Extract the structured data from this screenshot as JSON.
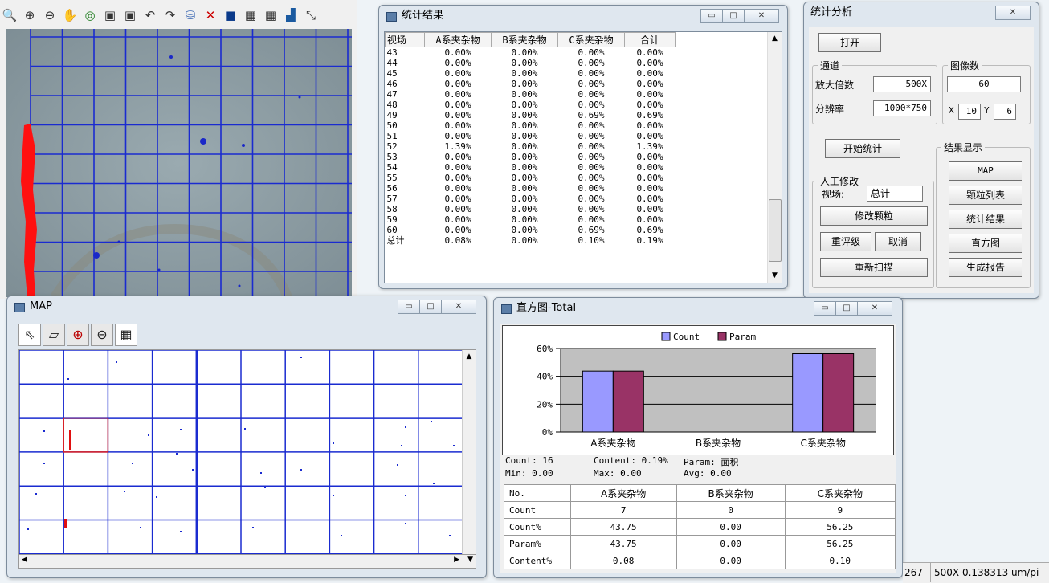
{
  "toolbar": {
    "icons": [
      "zoom-glass-icon",
      "zoom-in-icon",
      "zoom-out-icon",
      "hand-pan-icon",
      "zoom-fit-icon",
      "layer-back-icon",
      "layer-front-icon",
      "undo-icon",
      "redo-icon",
      "stamp-icon",
      "delete-x-icon",
      "fill-rect-icon",
      "color-grid-a-icon",
      "color-grid-b-icon",
      "chart-icon",
      "wand-icon"
    ]
  },
  "stats_window": {
    "title": "统计结果",
    "headers": [
      "视场",
      "A系夹杂物",
      "B系夹杂物",
      "C系夹杂物",
      "合计"
    ],
    "rows": [
      [
        "43",
        "0.00%",
        "0.00%",
        "0.00%",
        "0.00%"
      ],
      [
        "44",
        "0.00%",
        "0.00%",
        "0.00%",
        "0.00%"
      ],
      [
        "45",
        "0.00%",
        "0.00%",
        "0.00%",
        "0.00%"
      ],
      [
        "46",
        "0.00%",
        "0.00%",
        "0.00%",
        "0.00%"
      ],
      [
        "47",
        "0.00%",
        "0.00%",
        "0.00%",
        "0.00%"
      ],
      [
        "48",
        "0.00%",
        "0.00%",
        "0.00%",
        "0.00%"
      ],
      [
        "49",
        "0.00%",
        "0.00%",
        "0.69%",
        "0.69%"
      ],
      [
        "50",
        "0.00%",
        "0.00%",
        "0.00%",
        "0.00%"
      ],
      [
        "51",
        "0.00%",
        "0.00%",
        "0.00%",
        "0.00%"
      ],
      [
        "52",
        "1.39%",
        "0.00%",
        "0.00%",
        "1.39%"
      ],
      [
        "53",
        "0.00%",
        "0.00%",
        "0.00%",
        "0.00%"
      ],
      [
        "54",
        "0.00%",
        "0.00%",
        "0.00%",
        "0.00%"
      ],
      [
        "55",
        "0.00%",
        "0.00%",
        "0.00%",
        "0.00%"
      ],
      [
        "56",
        "0.00%",
        "0.00%",
        "0.00%",
        "0.00%"
      ],
      [
        "57",
        "0.00%",
        "0.00%",
        "0.00%",
        "0.00%"
      ],
      [
        "58",
        "0.00%",
        "0.00%",
        "0.00%",
        "0.00%"
      ],
      [
        "59",
        "0.00%",
        "0.00%",
        "0.00%",
        "0.00%"
      ],
      [
        "60",
        "0.00%",
        "0.00%",
        "0.69%",
        "0.69%"
      ],
      [
        "总计",
        "0.08%",
        "0.00%",
        "0.10%",
        "0.19%"
      ]
    ]
  },
  "analysis": {
    "title": "统计分析",
    "open_btn": "打开",
    "channel_group": "通道",
    "mag_label": "放大倍数",
    "mag_value": "500X",
    "res_label": "分辨率",
    "res_value": "1000*750",
    "imgcount_group": "图像数",
    "imgcount_value": "60",
    "x_label": "X",
    "x_value": "10",
    "y_label": "Y",
    "y_value": "6",
    "start_btn": "开始统计",
    "manual_group": "人工修改",
    "field_label": "视场:",
    "field_value": "总计",
    "modify_btn": "修改颗粒",
    "regrade_btn": "重评级",
    "cancel_btn": "取消",
    "rescan_btn": "重新扫描",
    "display_group": "结果显示",
    "map_btn": "MAP",
    "particles_btn": "颗粒列表",
    "results_btn": "统计结果",
    "hist_btn": "直方图",
    "report_btn": "生成报告"
  },
  "map_window": {
    "title": "MAP",
    "tools": [
      "cursor-arrow-icon",
      "rect-select-icon",
      "zoom-in-icon",
      "zoom-out-icon",
      "grid-icon"
    ]
  },
  "hist_window": {
    "title": "直方图-Total",
    "summary": {
      "count": "Count: 16",
      "content": "Content: 0.19%",
      "param": "Param: 面积",
      "min": "Min: 0.00",
      "max": "Max: 0.00",
      "avg": "Avg: 0.00"
    },
    "table": {
      "headers": [
        "No.",
        "A系夹杂物",
        "B系夹杂物",
        "C系夹杂物"
      ],
      "rows": [
        [
          "Count",
          "7",
          "0",
          "9"
        ],
        [
          "Count%",
          "43.75",
          "0.00",
          "56.25"
        ],
        [
          "Param%",
          "43.75",
          "0.00",
          "56.25"
        ],
        [
          "Content%",
          "0.08",
          "0.00",
          "0.10"
        ]
      ]
    }
  },
  "chart_data": {
    "type": "bar",
    "categories": [
      "A系夹杂物",
      "B系夹杂物",
      "C系夹杂物"
    ],
    "series": [
      {
        "name": "Count",
        "values": [
          43.75,
          0,
          56.25
        ],
        "color": "#9999ff"
      },
      {
        "name": "Param",
        "values": [
          43.75,
          0,
          56.25
        ],
        "color": "#993366"
      }
    ],
    "yticks": [
      "0%",
      "20%",
      "40%",
      "60%"
    ],
    "ylim": [
      0,
      60
    ],
    "legend": "top-center",
    "grid": true
  },
  "status": {
    "left": "267",
    "right": "500X  0.138313 um/pi"
  },
  "colors": {
    "grid_blue": "#1a2bd0",
    "inclusion_red": "#ff1010"
  }
}
